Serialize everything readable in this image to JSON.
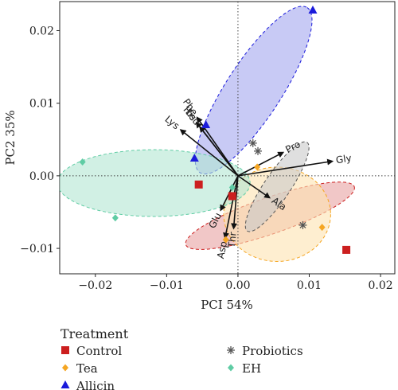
{
  "chart_data": {
    "type": "scatter",
    "subtype": "pca-biplot",
    "xlabel": "PCI 54%",
    "ylabel": "PC2 35%",
    "xlim": [
      -0.025,
      0.022
    ],
    "ylim": [
      -0.0135,
      0.024
    ],
    "x_ticks": [
      -0.02,
      -0.01,
      0.0,
      0.01,
      0.02
    ],
    "y_ticks": [
      -0.01,
      0.0,
      0.01,
      0.02
    ],
    "x_tick_labels": [
      "−0.02",
      "−0.01",
      "0.00",
      "0.01",
      "0.02"
    ],
    "y_tick_labels": [
      "−0.01",
      "0.00",
      "0.01",
      "0.02"
    ],
    "grid": false,
    "reference_lines": "dotted lines at x=0 and y=0",
    "legend": {
      "title": "Treatment",
      "position": "bottom-left",
      "entries": [
        "Control",
        "Tea",
        "Allicin",
        "Probiotics",
        "EH"
      ]
    },
    "colors": {
      "Control": "#cc1f1f",
      "Tea": "#f5a623",
      "Allicin": "#1a1adb",
      "Probiotics": "#555555",
      "EH": "#5fcca4"
    },
    "series": [
      {
        "name": "Control",
        "marker": "square",
        "points": [
          [
            -0.0055,
            -0.0012
          ],
          [
            -0.0008,
            -0.0028
          ],
          [
            0.0152,
            -0.0102
          ]
        ],
        "ellipse": {
          "center": [
            0.0045,
            -0.0055
          ],
          "rx": 0.0125,
          "ry": 0.0025,
          "angle_deg": 19,
          "fill": "#e8a2a2"
        }
      },
      {
        "name": "Tea",
        "marker": "diamond",
        "points": [
          [
            0.0027,
            0.0012
          ],
          [
            0.0118,
            -0.0071
          ],
          [
            -0.0017,
            -0.0088
          ]
        ],
        "ellipse": {
          "center": [
            0.0055,
            -0.0053
          ],
          "rx": 0.0075,
          "ry": 0.0065,
          "angle_deg": 0,
          "fill": "#fde2b0"
        }
      },
      {
        "name": "Allicin",
        "marker": "triangle",
        "points": [
          [
            0.0105,
            0.0228
          ],
          [
            -0.0045,
            0.007
          ],
          [
            -0.0061,
            0.0024
          ]
        ],
        "ellipse": {
          "center": [
            0.0022,
            0.0118
          ],
          "rx": 0.0138,
          "ry": 0.0038,
          "angle_deg": 57,
          "fill": "#a4a6ee"
        }
      },
      {
        "name": "Probiotics",
        "marker": "star",
        "points": [
          [
            0.0028,
            0.0034
          ],
          [
            0.0091,
            -0.0068
          ],
          [
            0.0021,
            0.0045
          ]
        ],
        "ellipse": {
          "center": [
            0.0055,
            -0.0015
          ],
          "rx": 0.0075,
          "ry": 0.0018,
          "angle_deg": 56,
          "fill": "#c9c9c9"
        }
      },
      {
        "name": "EH",
        "marker": "diamond",
        "points": [
          [
            -0.0218,
            0.0019
          ],
          [
            -0.0172,
            -0.0058
          ],
          [
            -0.0008,
            -0.0016
          ]
        ],
        "ellipse": {
          "center": [
            -0.0118,
            -0.001
          ],
          "rx": 0.0135,
          "ry": 0.0046,
          "angle_deg": 0,
          "fill": "#b3e6d2"
        }
      }
    ],
    "loadings": [
      {
        "label": "Gly",
        "x": 0.0132,
        "y": 0.002
      },
      {
        "label": "Pro",
        "x": 0.0063,
        "y": 0.0032
      },
      {
        "label": "Ala",
        "x": 0.0044,
        "y": -0.003
      },
      {
        "label": "Lys",
        "x": -0.008,
        "y": 0.0063
      },
      {
        "label": "Phe",
        "x": -0.0057,
        "y": 0.008
      },
      {
        "label": "His",
        "x": -0.0058,
        "y": 0.0073
      },
      {
        "label": "Leu",
        "x": -0.0053,
        "y": 0.0067
      },
      {
        "label": "Glu",
        "x": -0.0024,
        "y": -0.0047
      },
      {
        "label": "Asp",
        "x": -0.0018,
        "y": -0.0085
      },
      {
        "label": "Thr",
        "x": -0.0006,
        "y": -0.0072
      }
    ]
  }
}
